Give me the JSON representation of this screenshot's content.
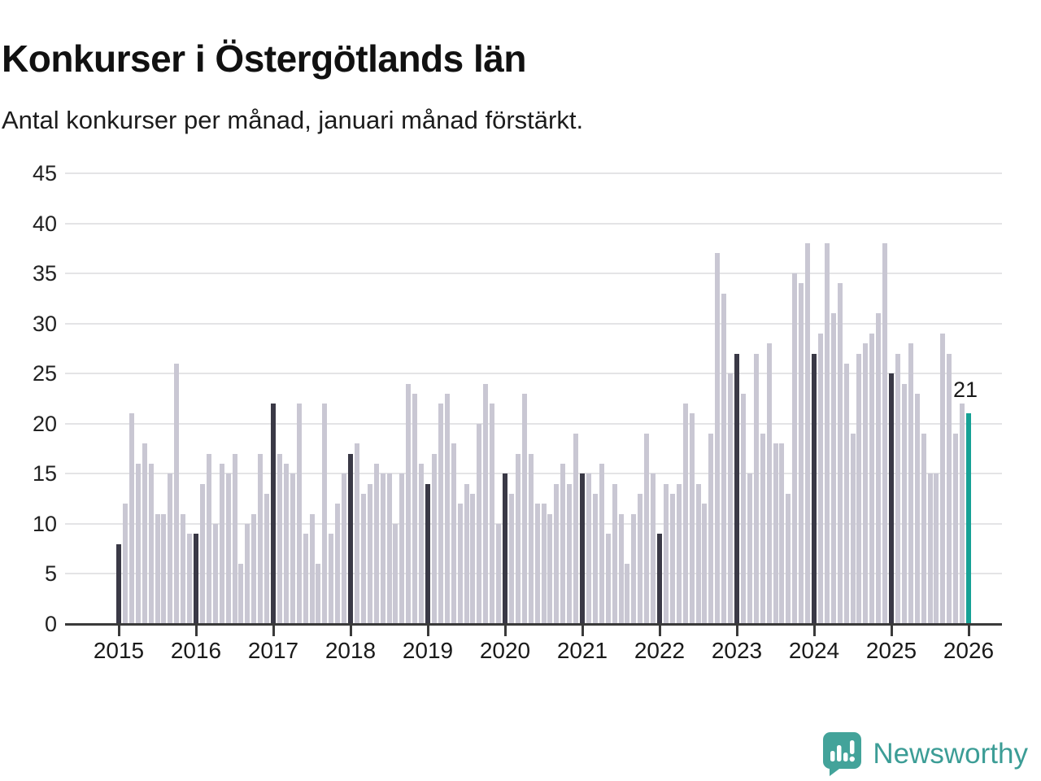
{
  "header": {
    "title": "Konkurser i Östergötlands län",
    "subtitle": "Antal konkurser per månad, januari månad förstärkt."
  },
  "chart_data": {
    "type": "bar",
    "title": "Konkurser i Östergötlands län",
    "subtitle": "Antal konkurser per månad, januari månad förstärkt.",
    "ylabel": "",
    "xlabel": "",
    "ylim": [
      0,
      45
    ],
    "y_ticks": [
      0,
      5,
      10,
      15,
      20,
      25,
      30,
      35,
      40,
      45
    ],
    "x_tick_labels": [
      "2015",
      "2016",
      "2017",
      "2018",
      "2019",
      "2020",
      "2021",
      "2022",
      "2023",
      "2024",
      "2025",
      "2026"
    ],
    "grid": "horizontal",
    "legend": "none",
    "series_note": "monthly bankruptcy counts, January emphasized dark, latest month teal",
    "years": [
      {
        "year": "2015",
        "values": [
          8,
          12,
          21,
          16,
          18,
          16,
          11,
          11,
          15,
          26,
          11,
          9
        ]
      },
      {
        "year": "2016",
        "values": [
          9,
          14,
          17,
          10,
          16,
          15,
          17,
          6,
          10,
          11,
          17,
          13
        ]
      },
      {
        "year": "2017",
        "values": [
          22,
          17,
          16,
          15,
          22,
          9,
          11,
          6,
          22,
          9,
          12,
          15
        ]
      },
      {
        "year": "2018",
        "values": [
          17,
          18,
          13,
          14,
          16,
          15,
          15,
          10,
          15,
          24,
          23,
          16
        ]
      },
      {
        "year": "2019",
        "values": [
          14,
          17,
          22,
          23,
          18,
          12,
          14,
          13,
          20,
          24,
          22,
          10
        ]
      },
      {
        "year": "2020",
        "values": [
          15,
          13,
          17,
          23,
          17,
          12,
          12,
          11,
          14,
          16,
          14,
          19
        ]
      },
      {
        "year": "2021",
        "values": [
          15,
          15,
          13,
          16,
          9,
          14,
          11,
          6,
          11,
          13,
          19,
          15
        ]
      },
      {
        "year": "2022",
        "values": [
          9,
          14,
          13,
          14,
          22,
          21,
          14,
          12,
          19,
          37,
          33,
          25
        ]
      },
      {
        "year": "2023",
        "values": [
          27,
          23,
          15,
          27,
          19,
          28,
          18,
          18,
          13,
          35,
          34,
          38
        ]
      },
      {
        "year": "2024",
        "values": [
          27,
          29,
          38,
          31,
          34,
          26,
          19,
          27,
          28,
          29,
          31,
          38
        ]
      },
      {
        "year": "2025",
        "values": [
          25,
          27,
          24,
          28,
          23,
          19,
          15,
          15,
          29,
          27,
          19,
          22
        ]
      },
      {
        "year": "2026",
        "values": [
          21
        ]
      }
    ],
    "highlight": {
      "label": "21",
      "value": 21,
      "month_index": 0,
      "year": "2026"
    },
    "colors": {
      "bar": "#c9c7d3",
      "january": "#3a3946",
      "highlight": "#16a195",
      "gridline": "#e4e4e6",
      "axis": "#3a3a3a"
    }
  },
  "branding": {
    "wordmark": "Newsworthy",
    "logo_color": "#3c9d96",
    "logo_icon": "chart-speech-bubble-icon"
  }
}
